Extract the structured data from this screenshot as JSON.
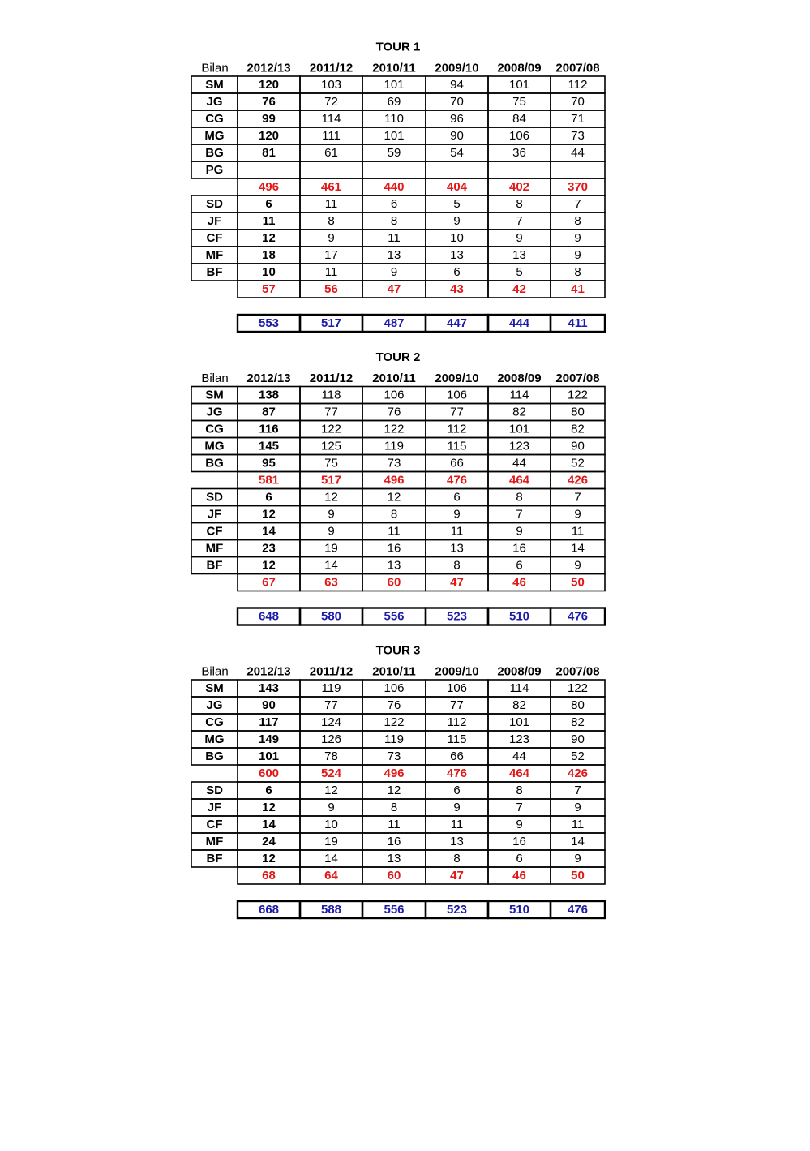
{
  "tours": [
    {
      "title": "TOUR 1",
      "header": {
        "label": "Bilan",
        "years": [
          "2012/13",
          "2011/12",
          "2010/11",
          "2009/10",
          "2008/09",
          "2007/08"
        ]
      },
      "group1": [
        {
          "label": "SM",
          "values": [
            120,
            103,
            101,
            94,
            101,
            112
          ]
        },
        {
          "label": "JG",
          "values": [
            76,
            72,
            69,
            70,
            75,
            70
          ]
        },
        {
          "label": "CG",
          "values": [
            99,
            114,
            110,
            96,
            84,
            71
          ]
        },
        {
          "label": "MG",
          "values": [
            120,
            111,
            101,
            90,
            106,
            73
          ]
        },
        {
          "label": "BG",
          "values": [
            81,
            61,
            59,
            54,
            36,
            44
          ]
        },
        {
          "label": "PG",
          "values": [
            null,
            null,
            null,
            null,
            null,
            null
          ]
        }
      ],
      "subtotal1": [
        496,
        461,
        440,
        404,
        402,
        370
      ],
      "group2": [
        {
          "label": "SD",
          "values": [
            6,
            11,
            6,
            5,
            8,
            7
          ]
        },
        {
          "label": "JF",
          "values": [
            11,
            8,
            8,
            9,
            7,
            8
          ]
        },
        {
          "label": "CF",
          "values": [
            12,
            9,
            11,
            10,
            9,
            9
          ]
        },
        {
          "label": "MF",
          "values": [
            18,
            17,
            13,
            13,
            13,
            9
          ]
        },
        {
          "label": "BF",
          "values": [
            10,
            11,
            9,
            6,
            5,
            8
          ]
        }
      ],
      "subtotal2": [
        57,
        56,
        47,
        43,
        42,
        41
      ],
      "total": [
        553,
        517,
        487,
        447,
        444,
        411
      ]
    },
    {
      "title": "TOUR 2",
      "header": {
        "label": "Bilan",
        "years": [
          "2012/13",
          "2011/12",
          "2010/11",
          "2009/10",
          "2008/09",
          "2007/08"
        ]
      },
      "group1": [
        {
          "label": "SM",
          "values": [
            138,
            118,
            106,
            106,
            114,
            122
          ]
        },
        {
          "label": "JG",
          "values": [
            87,
            77,
            76,
            77,
            82,
            80
          ]
        },
        {
          "label": "CG",
          "values": [
            116,
            122,
            122,
            112,
            101,
            82
          ]
        },
        {
          "label": "MG",
          "values": [
            145,
            125,
            119,
            115,
            123,
            90
          ]
        },
        {
          "label": "BG",
          "values": [
            95,
            75,
            73,
            66,
            44,
            52
          ]
        }
      ],
      "subtotal1": [
        581,
        517,
        496,
        476,
        464,
        426
      ],
      "group2": [
        {
          "label": "SD",
          "values": [
            6,
            12,
            12,
            6,
            8,
            7
          ]
        },
        {
          "label": "JF",
          "values": [
            12,
            9,
            8,
            9,
            7,
            9
          ]
        },
        {
          "label": "CF",
          "values": [
            14,
            9,
            11,
            11,
            9,
            11
          ]
        },
        {
          "label": "MF",
          "values": [
            23,
            19,
            16,
            13,
            16,
            14
          ]
        },
        {
          "label": "BF",
          "values": [
            12,
            14,
            13,
            8,
            6,
            9
          ]
        }
      ],
      "subtotal2": [
        67,
        63,
        60,
        47,
        46,
        50
      ],
      "total": [
        648,
        580,
        556,
        523,
        510,
        476
      ]
    },
    {
      "title": "TOUR 3",
      "header": {
        "label": "Bilan",
        "years": [
          "2012/13",
          "2011/12",
          "2010/11",
          "2009/10",
          "2008/09",
          "2007/08"
        ]
      },
      "group1": [
        {
          "label": "SM",
          "values": [
            143,
            119,
            106,
            106,
            114,
            122
          ]
        },
        {
          "label": "JG",
          "values": [
            90,
            77,
            76,
            77,
            82,
            80
          ]
        },
        {
          "label": "CG",
          "values": [
            117,
            124,
            122,
            112,
            101,
            82
          ]
        },
        {
          "label": "MG",
          "values": [
            149,
            126,
            119,
            115,
            123,
            90
          ]
        },
        {
          "label": "BG",
          "values": [
            101,
            78,
            73,
            66,
            44,
            52
          ]
        }
      ],
      "subtotal1": [
        600,
        524,
        496,
        476,
        464,
        426
      ],
      "group2": [
        {
          "label": "SD",
          "values": [
            6,
            12,
            12,
            6,
            8,
            7
          ]
        },
        {
          "label": "JF",
          "values": [
            12,
            9,
            8,
            9,
            7,
            9
          ]
        },
        {
          "label": "CF",
          "values": [
            14,
            10,
            11,
            11,
            9,
            11
          ]
        },
        {
          "label": "MF",
          "values": [
            24,
            19,
            16,
            13,
            16,
            14
          ]
        },
        {
          "label": "BF",
          "values": [
            12,
            14,
            13,
            8,
            6,
            9
          ]
        }
      ],
      "subtotal2": [
        68,
        64,
        60,
        47,
        46,
        50
      ],
      "total": [
        668,
        588,
        556,
        523,
        510,
        476
      ]
    }
  ]
}
